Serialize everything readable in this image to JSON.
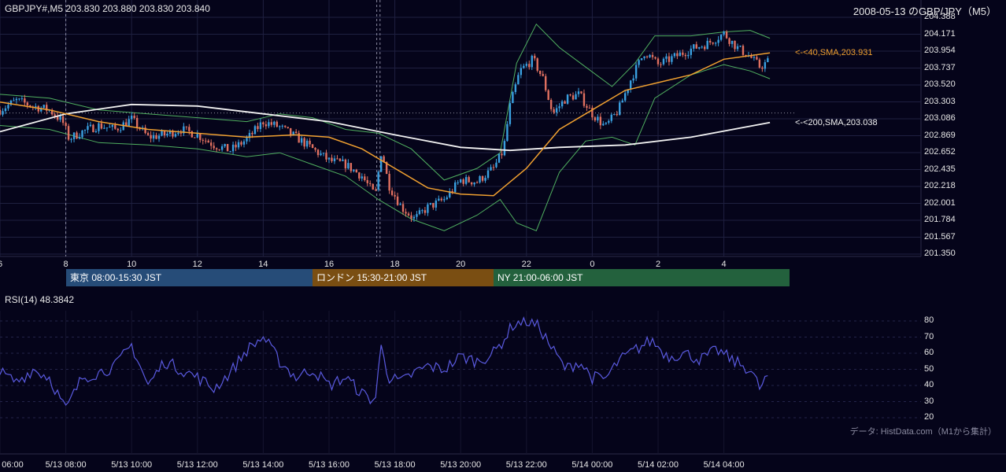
{
  "header": {
    "symbol_line": "GBPJPY#,M5 203.830 203.880 203.830 203.840",
    "date_title": "2008-05-13 のGBP/JPY（M5）"
  },
  "sma": {
    "sma40_label": "<-<40,SMA,203.931",
    "sma200_label": "<-<200,SMA,203.038"
  },
  "sessions": [
    {
      "label": "東京 08:00-15:30 JST",
      "color": "#264c78"
    },
    {
      "label": "ロンドン 15:30-21:00 JST",
      "color": "#7a4e12"
    },
    {
      "label": "NY 21:00-06:00 JST",
      "color": "#23613d"
    }
  ],
  "rsi": {
    "label": "RSI(14) 48.3842"
  },
  "source_note": "データ: HistData.com（M1から集計）",
  "colors": {
    "candle_up": "#3aa0e0",
    "candle_down": "#e07060",
    "sma40": "#f0a030",
    "sma200": "#f2f2f2",
    "bands": "#50b060",
    "rsi_line": "#5a5ae0"
  },
  "chart_data": [
    {
      "type": "candlestick",
      "y_ticks": [
        "204.388",
        "204.171",
        "203.954",
        "203.737",
        "203.520",
        "203.303",
        "203.086",
        "202.869",
        "202.652",
        "202.435",
        "202.218",
        "202.001",
        "201.784",
        "201.567",
        "201.350"
      ],
      "ylim": [
        201.35,
        204.388
      ],
      "x_ticks": [
        "6",
        "8",
        "10",
        "12",
        "14",
        "16",
        "18",
        "20",
        "22",
        "0",
        "2",
        "4"
      ],
      "close_path": [
        {
          "t": 6.0,
          "v": 203.2
        },
        {
          "t": 6.5,
          "v": 203.32
        },
        {
          "t": 7.0,
          "v": 203.25
        },
        {
          "t": 7.5,
          "v": 203.2
        },
        {
          "t": 7.9,
          "v": 203.05
        },
        {
          "t": 8.1,
          "v": 202.83
        },
        {
          "t": 8.5,
          "v": 202.92
        },
        {
          "t": 9.0,
          "v": 203.0
        },
        {
          "t": 9.5,
          "v": 202.95
        },
        {
          "t": 10.0,
          "v": 203.08
        },
        {
          "t": 10.5,
          "v": 202.85
        },
        {
          "t": 11.0,
          "v": 202.88
        },
        {
          "t": 11.5,
          "v": 202.95
        },
        {
          "t": 12.0,
          "v": 202.88
        },
        {
          "t": 12.5,
          "v": 202.75
        },
        {
          "t": 13.0,
          "v": 202.68
        },
        {
          "t": 13.5,
          "v": 202.82
        },
        {
          "t": 14.0,
          "v": 203.05
        },
        {
          "t": 14.5,
          "v": 202.98
        },
        {
          "t": 15.0,
          "v": 202.85
        },
        {
          "t": 15.5,
          "v": 202.7
        },
        {
          "t": 16.0,
          "v": 202.55
        },
        {
          "t": 16.5,
          "v": 202.5
        },
        {
          "t": 17.0,
          "v": 202.35
        },
        {
          "t": 17.4,
          "v": 202.1
        },
        {
          "t": 17.6,
          "v": 202.7
        },
        {
          "t": 17.8,
          "v": 202.25
        },
        {
          "t": 18.2,
          "v": 201.95
        },
        {
          "t": 18.6,
          "v": 201.8
        },
        {
          "t": 19.0,
          "v": 201.95
        },
        {
          "t": 19.5,
          "v": 202.05
        },
        {
          "t": 20.0,
          "v": 202.3
        },
        {
          "t": 20.5,
          "v": 202.28
        },
        {
          "t": 21.0,
          "v": 202.45
        },
        {
          "t": 21.3,
          "v": 202.68
        },
        {
          "t": 21.5,
          "v": 203.25
        },
        {
          "t": 21.8,
          "v": 203.7
        },
        {
          "t": 22.2,
          "v": 203.85
        },
        {
          "t": 22.5,
          "v": 203.6
        },
        {
          "t": 22.8,
          "v": 203.15
        },
        {
          "t": 23.2,
          "v": 203.35
        },
        {
          "t": 23.6,
          "v": 203.4
        },
        {
          "t": 24.0,
          "v": 203.15
        },
        {
          "t": 24.4,
          "v": 202.98
        },
        {
          "t": 24.8,
          "v": 203.2
        },
        {
          "t": 25.2,
          "v": 203.62
        },
        {
          "t": 25.6,
          "v": 203.95
        },
        {
          "t": 26.0,
          "v": 203.78
        },
        {
          "t": 26.5,
          "v": 203.88
        },
        {
          "t": 27.0,
          "v": 203.98
        },
        {
          "t": 27.5,
          "v": 204.05
        },
        {
          "t": 28.0,
          "v": 204.18
        },
        {
          "t": 28.4,
          "v": 204.0
        },
        {
          "t": 28.8,
          "v": 203.88
        },
        {
          "t": 29.1,
          "v": 203.75
        },
        {
          "t": 29.4,
          "v": 203.84
        }
      ],
      "sma40": [
        {
          "t": 6.0,
          "v": 203.3
        },
        {
          "t": 7.5,
          "v": 203.2
        },
        {
          "t": 9.0,
          "v": 203.05
        },
        {
          "t": 10.5,
          "v": 202.95
        },
        {
          "t": 12.0,
          "v": 202.9
        },
        {
          "t": 13.5,
          "v": 202.85
        },
        {
          "t": 15.0,
          "v": 202.88
        },
        {
          "t": 16.0,
          "v": 202.85
        },
        {
          "t": 17.0,
          "v": 202.7
        },
        {
          "t": 18.0,
          "v": 202.45
        },
        {
          "t": 19.0,
          "v": 202.2
        },
        {
          "t": 20.0,
          "v": 202.12
        },
        {
          "t": 21.0,
          "v": 202.1
        },
        {
          "t": 22.0,
          "v": 202.45
        },
        {
          "t": 23.0,
          "v": 202.95
        },
        {
          "t": 24.0,
          "v": 203.2
        },
        {
          "t": 25.0,
          "v": 203.45
        },
        {
          "t": 26.0,
          "v": 203.55
        },
        {
          "t": 27.0,
          "v": 203.65
        },
        {
          "t": 28.0,
          "v": 203.85
        },
        {
          "t": 29.4,
          "v": 203.931
        }
      ],
      "sma200": [
        {
          "t": 6.0,
          "v": 202.92
        },
        {
          "t": 8.0,
          "v": 203.15
        },
        {
          "t": 10.0,
          "v": 203.27
        },
        {
          "t": 12.0,
          "v": 203.25
        },
        {
          "t": 14.0,
          "v": 203.15
        },
        {
          "t": 16.0,
          "v": 203.05
        },
        {
          "t": 18.0,
          "v": 202.88
        },
        {
          "t": 20.0,
          "v": 202.72
        },
        {
          "t": 21.5,
          "v": 202.68
        },
        {
          "t": 23.0,
          "v": 202.72
        },
        {
          "t": 25.0,
          "v": 202.75
        },
        {
          "t": 27.0,
          "v": 202.85
        },
        {
          "t": 29.4,
          "v": 203.038
        }
      ],
      "band_upper": [
        {
          "t": 6.0,
          "v": 203.4
        },
        {
          "t": 7.5,
          "v": 203.35
        },
        {
          "t": 9.0,
          "v": 203.2
        },
        {
          "t": 10.5,
          "v": 203.15
        },
        {
          "t": 12.0,
          "v": 203.1
        },
        {
          "t": 13.5,
          "v": 203.05
        },
        {
          "t": 14.5,
          "v": 203.15
        },
        {
          "t": 15.5,
          "v": 203.1
        },
        {
          "t": 16.5,
          "v": 202.95
        },
        {
          "t": 17.5,
          "v": 202.9
        },
        {
          "t": 18.5,
          "v": 202.7
        },
        {
          "t": 19.5,
          "v": 202.3
        },
        {
          "t": 20.5,
          "v": 202.45
        },
        {
          "t": 21.2,
          "v": 202.65
        },
        {
          "t": 21.7,
          "v": 203.8
        },
        {
          "t": 22.3,
          "v": 204.3
        },
        {
          "t": 23.0,
          "v": 204.0
        },
        {
          "t": 23.8,
          "v": 203.75
        },
        {
          "t": 24.6,
          "v": 203.5
        },
        {
          "t": 25.3,
          "v": 203.8
        },
        {
          "t": 25.9,
          "v": 204.15
        },
        {
          "t": 27.0,
          "v": 204.15
        },
        {
          "t": 28.0,
          "v": 204.2
        },
        {
          "t": 28.8,
          "v": 204.22
        },
        {
          "t": 29.4,
          "v": 204.12
        }
      ],
      "band_lower": [
        {
          "t": 6.0,
          "v": 203.0
        },
        {
          "t": 7.5,
          "v": 202.95
        },
        {
          "t": 9.0,
          "v": 202.78
        },
        {
          "t": 10.5,
          "v": 202.75
        },
        {
          "t": 12.0,
          "v": 202.7
        },
        {
          "t": 13.5,
          "v": 202.6
        },
        {
          "t": 14.5,
          "v": 202.65
        },
        {
          "t": 15.5,
          "v": 202.5
        },
        {
          "t": 16.5,
          "v": 202.35
        },
        {
          "t": 17.5,
          "v": 202.05
        },
        {
          "t": 18.5,
          "v": 201.8
        },
        {
          "t": 19.5,
          "v": 201.65
        },
        {
          "t": 20.5,
          "v": 201.85
        },
        {
          "t": 21.2,
          "v": 202.05
        },
        {
          "t": 21.7,
          "v": 201.75
        },
        {
          "t": 22.3,
          "v": 201.65
        },
        {
          "t": 23.0,
          "v": 202.4
        },
        {
          "t": 23.8,
          "v": 202.8
        },
        {
          "t": 24.6,
          "v": 202.85
        },
        {
          "t": 25.3,
          "v": 202.75
        },
        {
          "t": 25.9,
          "v": 203.35
        },
        {
          "t": 27.0,
          "v": 203.65
        },
        {
          "t": 28.0,
          "v": 203.78
        },
        {
          "t": 28.8,
          "v": 203.7
        },
        {
          "t": 29.4,
          "v": 203.6
        }
      ]
    },
    {
      "type": "line",
      "title": "RSI(14) 48.3842",
      "y_ticks": [
        "80",
        "70",
        "60",
        "50",
        "40",
        "30",
        "20"
      ],
      "ylim": [
        20,
        80
      ],
      "x_ticks": [
        "06:00",
        "5/13 08:00",
        "5/13 10:00",
        "5/13 12:00",
        "5/13 14:00",
        "5/13 16:00",
        "5/13 18:00",
        "5/13 20:00",
        "5/13 22:00",
        "5/14 00:00",
        "5/14 02:00",
        "5/14 04:00"
      ],
      "values": [
        {
          "t": 6.0,
          "v": 48
        },
        {
          "t": 6.5,
          "v": 42
        },
        {
          "t": 7.0,
          "v": 50
        },
        {
          "t": 7.5,
          "v": 45
        },
        {
          "t": 8.0,
          "v": 25
        },
        {
          "t": 8.5,
          "v": 45
        },
        {
          "t": 9.0,
          "v": 48
        },
        {
          "t": 9.5,
          "v": 52
        },
        {
          "t": 10.0,
          "v": 65
        },
        {
          "t": 10.5,
          "v": 40
        },
        {
          "t": 11.0,
          "v": 55
        },
        {
          "t": 11.5,
          "v": 50
        },
        {
          "t": 12.0,
          "v": 45
        },
        {
          "t": 12.5,
          "v": 38
        },
        {
          "t": 13.0,
          "v": 48
        },
        {
          "t": 13.5,
          "v": 62
        },
        {
          "t": 14.0,
          "v": 70
        },
        {
          "t": 14.5,
          "v": 55
        },
        {
          "t": 15.0,
          "v": 45
        },
        {
          "t": 15.5,
          "v": 50
        },
        {
          "t": 16.0,
          "v": 40
        },
        {
          "t": 16.5,
          "v": 45
        },
        {
          "t": 17.0,
          "v": 35
        },
        {
          "t": 17.4,
          "v": 30
        },
        {
          "t": 17.6,
          "v": 67
        },
        {
          "t": 17.8,
          "v": 45
        },
        {
          "t": 18.2,
          "v": 42
        },
        {
          "t": 18.6,
          "v": 48
        },
        {
          "t": 19.0,
          "v": 52
        },
        {
          "t": 19.5,
          "v": 50
        },
        {
          "t": 20.0,
          "v": 58
        },
        {
          "t": 20.5,
          "v": 55
        },
        {
          "t": 21.0,
          "v": 60
        },
        {
          "t": 21.3,
          "v": 68
        },
        {
          "t": 21.6,
          "v": 78
        },
        {
          "t": 22.0,
          "v": 80
        },
        {
          "t": 22.4,
          "v": 76
        },
        {
          "t": 22.8,
          "v": 62
        },
        {
          "t": 23.2,
          "v": 50
        },
        {
          "t": 23.6,
          "v": 55
        },
        {
          "t": 24.0,
          "v": 45
        },
        {
          "t": 24.4,
          "v": 44
        },
        {
          "t": 24.8,
          "v": 55
        },
        {
          "t": 25.3,
          "v": 62
        },
        {
          "t": 25.8,
          "v": 68
        },
        {
          "t": 26.3,
          "v": 58
        },
        {
          "t": 26.8,
          "v": 60
        },
        {
          "t": 27.3,
          "v": 56
        },
        {
          "t": 27.8,
          "v": 62
        },
        {
          "t": 28.3,
          "v": 55
        },
        {
          "t": 28.8,
          "v": 50
        },
        {
          "t": 29.1,
          "v": 38
        },
        {
          "t": 29.4,
          "v": 48.3842
        }
      ]
    }
  ]
}
